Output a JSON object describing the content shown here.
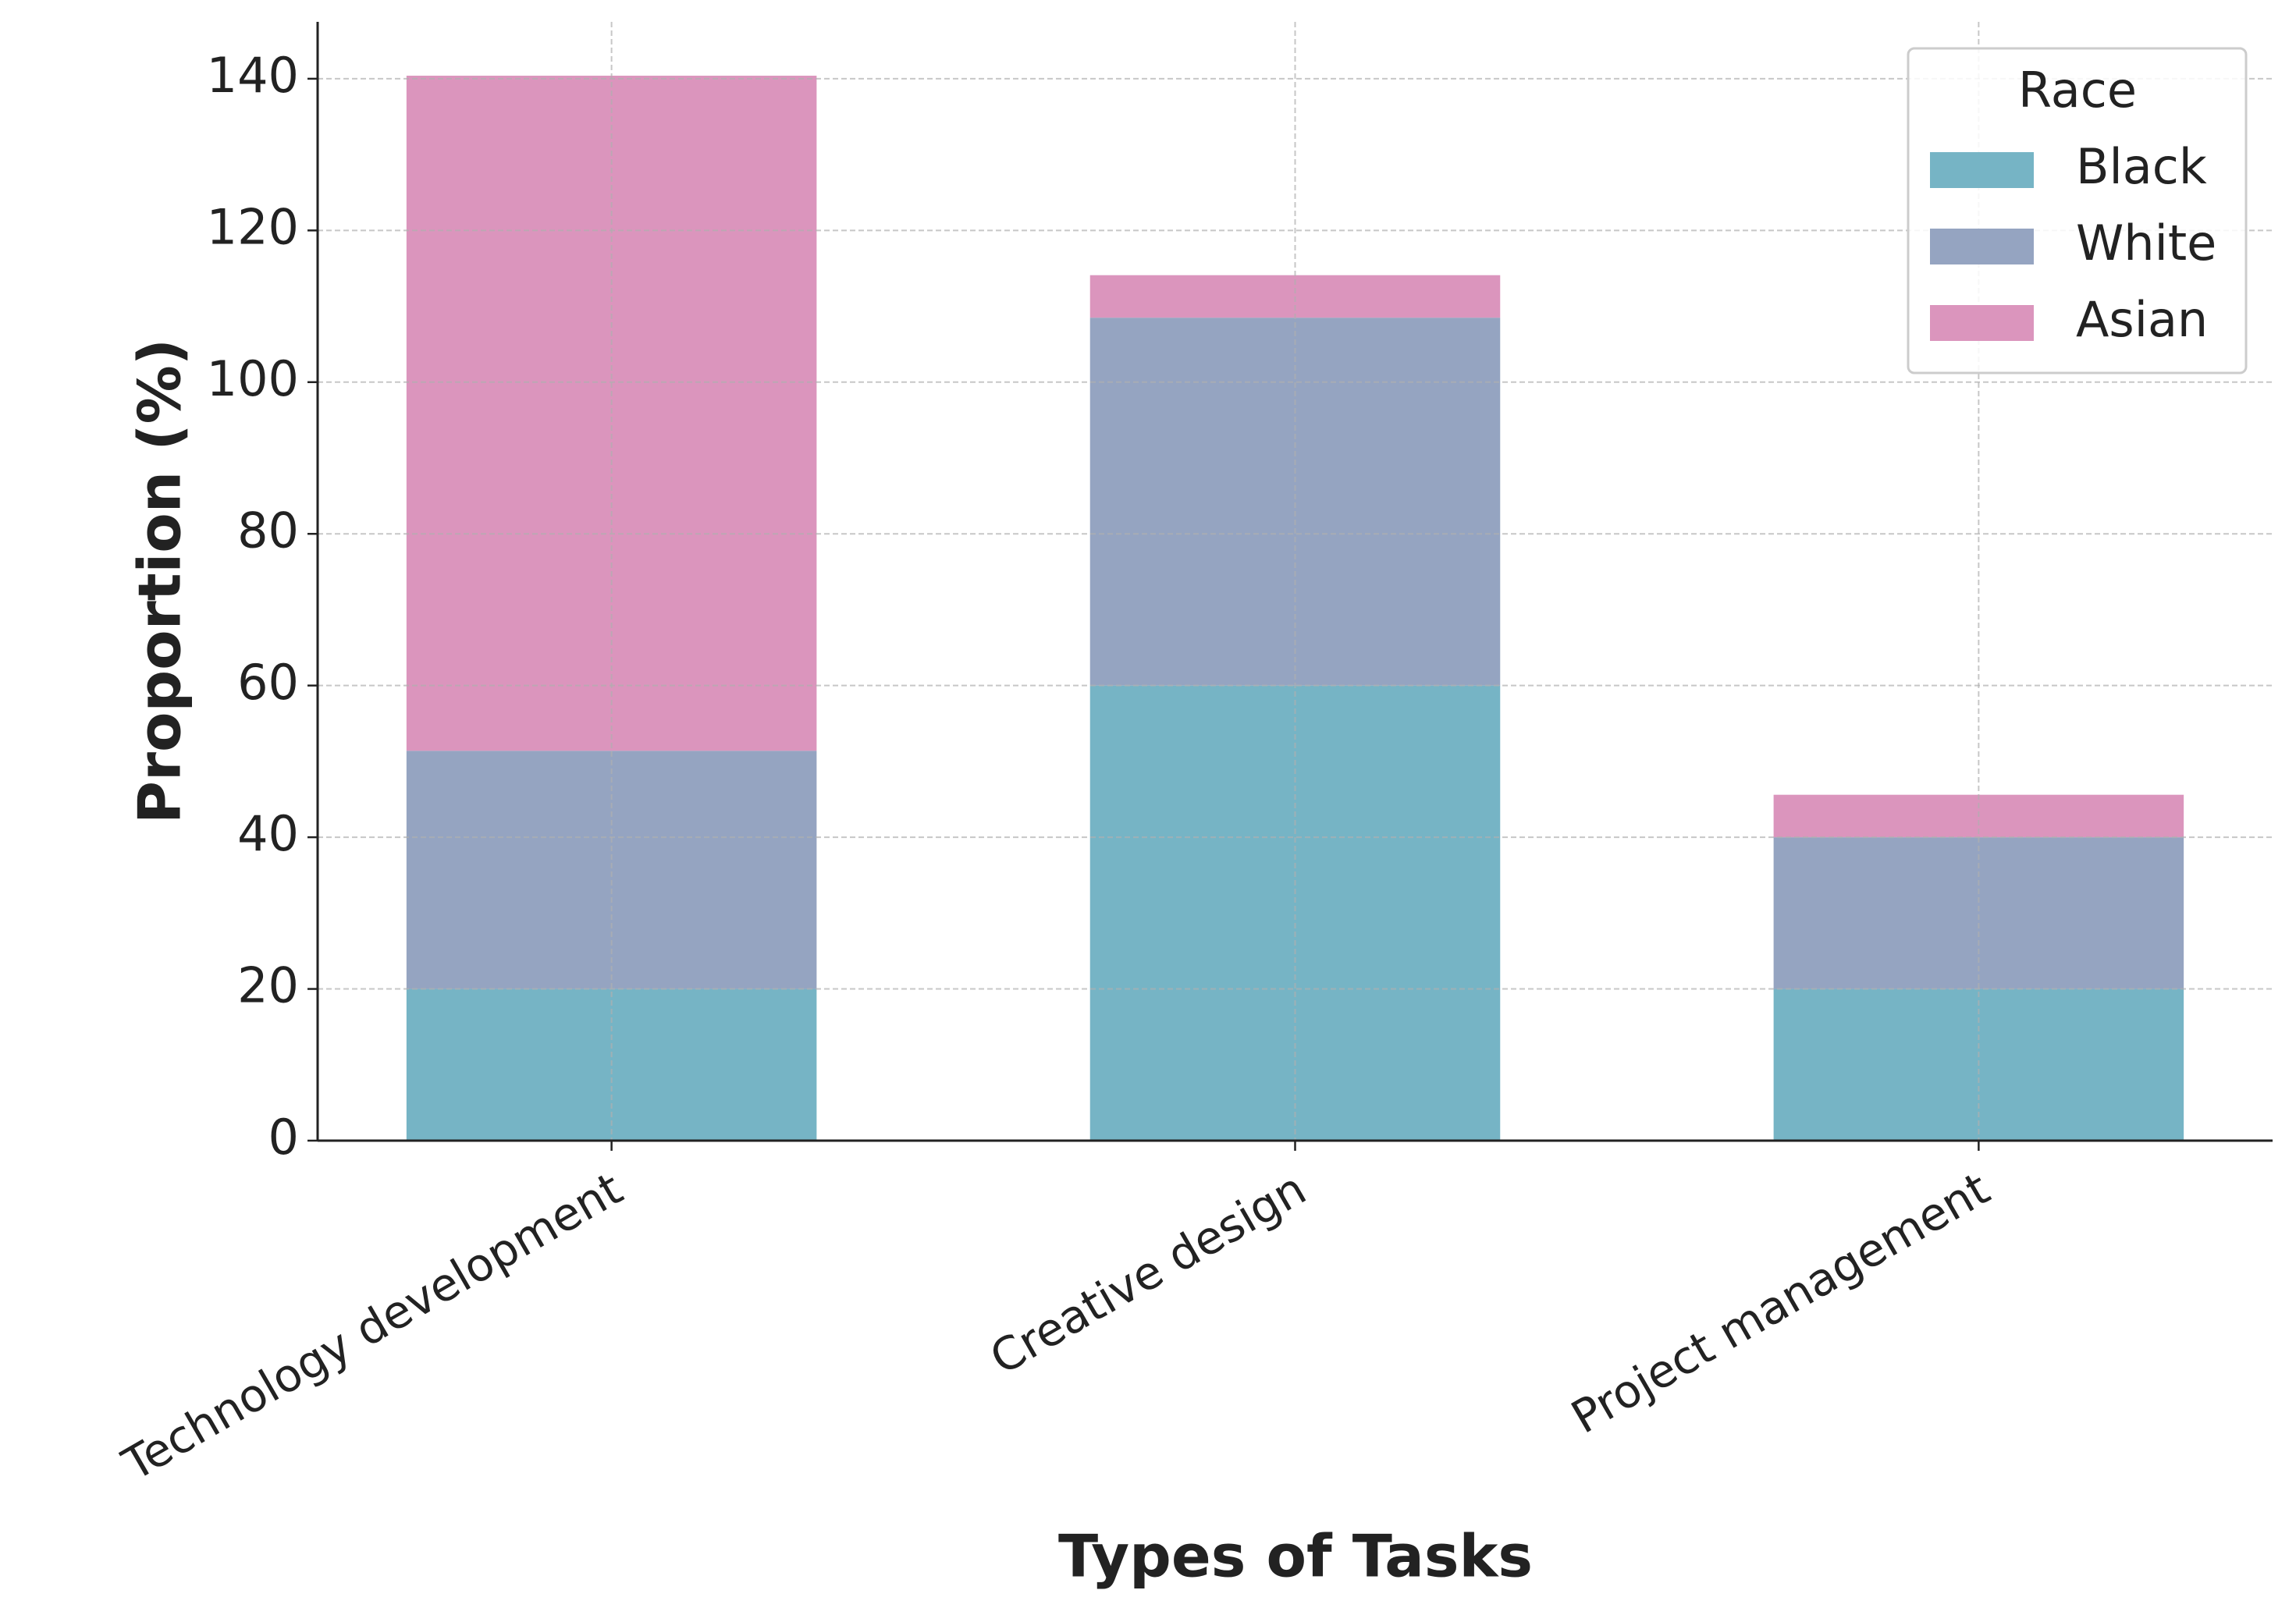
{
  "chart_data": {
    "type": "stacked_bar",
    "xlabel": "Types of Tasks",
    "ylabel": "Proportion (%)",
    "categories": [
      "Technology development",
      "Creative design",
      "Project management"
    ],
    "series": [
      {
        "name": "Black",
        "color": "#76b4c5",
        "values": [
          20,
          60,
          20
        ]
      },
      {
        "name": "White",
        "color": "#95a4c1",
        "values": [
          31.4,
          48.5,
          20
        ]
      },
      {
        "name": "Asian",
        "color": "#db95bd",
        "values": [
          89,
          5.6,
          5.6
        ]
      }
    ],
    "ylim": [
      0,
      147.5
    ],
    "yticks": [
      0,
      20,
      40,
      60,
      80,
      100,
      120,
      140
    ],
    "grid": true,
    "legend_title": "Race",
    "legend_position": "upper right"
  }
}
